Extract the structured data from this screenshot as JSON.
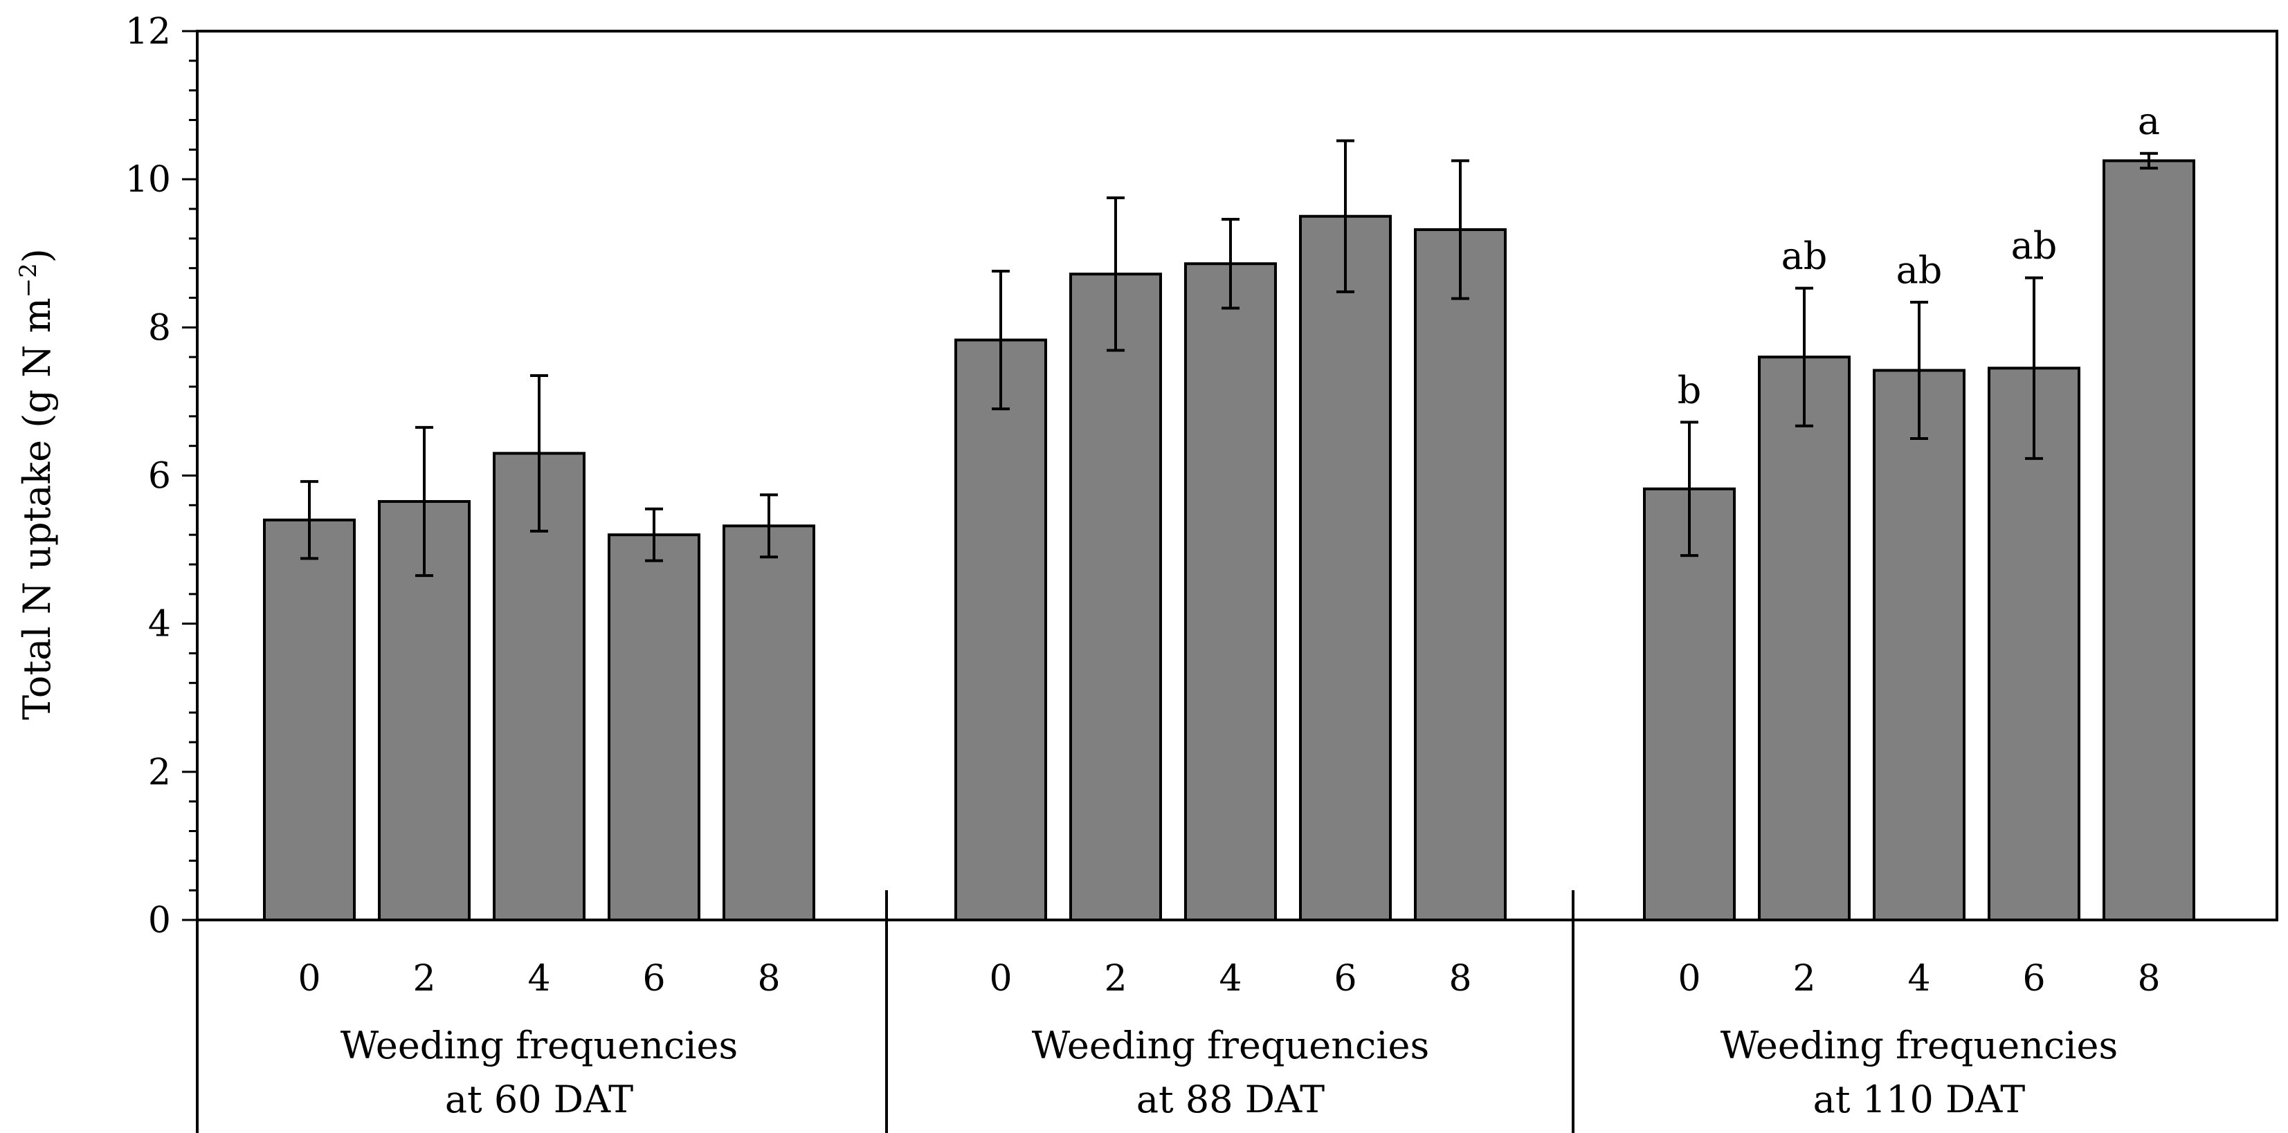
{
  "chart_data": {
    "type": "bar",
    "ylabel": "Total N uptake (g N m",
    "ylabel_sup": "−2",
    "ylabel_close": ")",
    "ylim": [
      0,
      12
    ],
    "y_major_ticks": [
      0,
      2,
      4,
      6,
      8,
      10,
      12
    ],
    "y_minor_step": 0.4,
    "bar_color": "#808080",
    "groups": [
      {
        "label_line1": "Weeding frequencies",
        "label_line2": "at 60 DAT",
        "categories": [
          "0",
          "2",
          "4",
          "6",
          "8"
        ],
        "values": [
          5.4,
          5.65,
          6.3,
          5.2,
          5.32
        ],
        "errors": [
          0.52,
          1.0,
          1.05,
          0.35,
          0.42
        ],
        "significance": []
      },
      {
        "label_line1": "Weeding frequencies",
        "label_line2": "at 88 DAT",
        "categories": [
          "0",
          "2",
          "4",
          "6",
          "8"
        ],
        "values": [
          7.83,
          8.72,
          8.86,
          9.5,
          9.32
        ],
        "errors": [
          0.93,
          1.03,
          0.6,
          1.02,
          0.93
        ],
        "significance": []
      },
      {
        "label_line1": "Weeding frequencies",
        "label_line2": "at 110 DAT",
        "categories": [
          "0",
          "2",
          "4",
          "6",
          "8"
        ],
        "values": [
          5.82,
          7.6,
          7.42,
          7.45,
          10.25
        ],
        "errors": [
          0.9,
          0.93,
          0.92,
          1.22,
          0.1
        ],
        "significance": [
          "b",
          "ab",
          "ab",
          "ab",
          "a"
        ]
      }
    ]
  }
}
